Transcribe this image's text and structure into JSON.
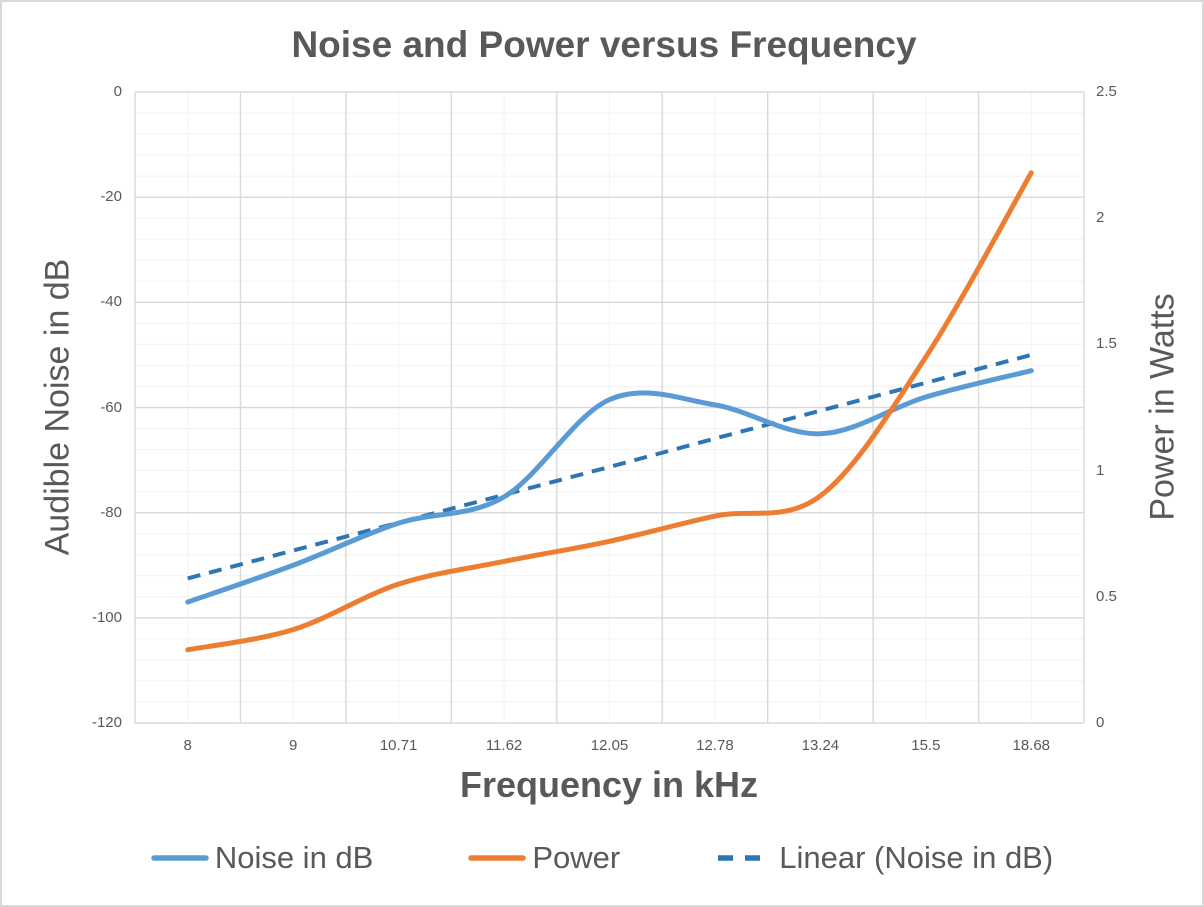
{
  "window": {
    "background": "#FFFFFF",
    "border_color": "#D9D9D9",
    "text_color": "#595959"
  },
  "chart_data": {
    "type": "line",
    "title": "Noise and Power versus Frequency",
    "xlabel": "Frequency in kHz",
    "ylabel_left": "Audible Noise in dB",
    "ylabel_right": "Power in Watts",
    "categories": [
      "8",
      "9",
      "10.71",
      "11.62",
      "12.05",
      "12.78",
      "13.24",
      "15.5",
      "18.68"
    ],
    "y_left_axis": {
      "min": -120,
      "max": 0,
      "major_step": 20,
      "minor_step": 4,
      "tick_labels": [
        "0",
        "-20",
        "-40",
        "-60",
        "-80",
        "-100",
        "-120"
      ]
    },
    "y_right_axis": {
      "min": 0,
      "max": 2.5,
      "major_step": 0.5,
      "tick_labels": [
        "2.5",
        "2",
        "1.5",
        "1",
        "0.5",
        "0"
      ]
    },
    "grid": {
      "major_color": "#D9D9D9",
      "minor_color": "#F2F2F2",
      "vertical_major": "category-boundaries",
      "vertical_minor": "category-centers",
      "horizontal_minor_db": 4
    },
    "series": [
      {
        "name": "Noise in dB",
        "axis": "left",
        "color": "#5B9BD5",
        "line_style": "solid",
        "smooth": true,
        "values": [
          -97,
          -90,
          -82,
          -77,
          -58.5,
          -59.5,
          -65,
          -58,
          -53
        ]
      },
      {
        "name": "Power",
        "axis": "right",
        "color": "#ED7D31",
        "line_style": "solid",
        "smooth": true,
        "values": [
          0.29,
          0.37,
          0.55,
          0.64,
          0.72,
          0.82,
          0.9,
          1.45,
          2.18
        ]
      },
      {
        "name": "Linear (Noise in dB)",
        "axis": "left",
        "color": "#2E75B6",
        "line_style": "dashed",
        "smooth": false,
        "values": [
          -92.5,
          -87.2,
          -81.9,
          -76.6,
          -71.3,
          -65.9,
          -60.6,
          -55.3,
          -50
        ]
      }
    ],
    "legend": {
      "position": "bottom"
    }
  }
}
